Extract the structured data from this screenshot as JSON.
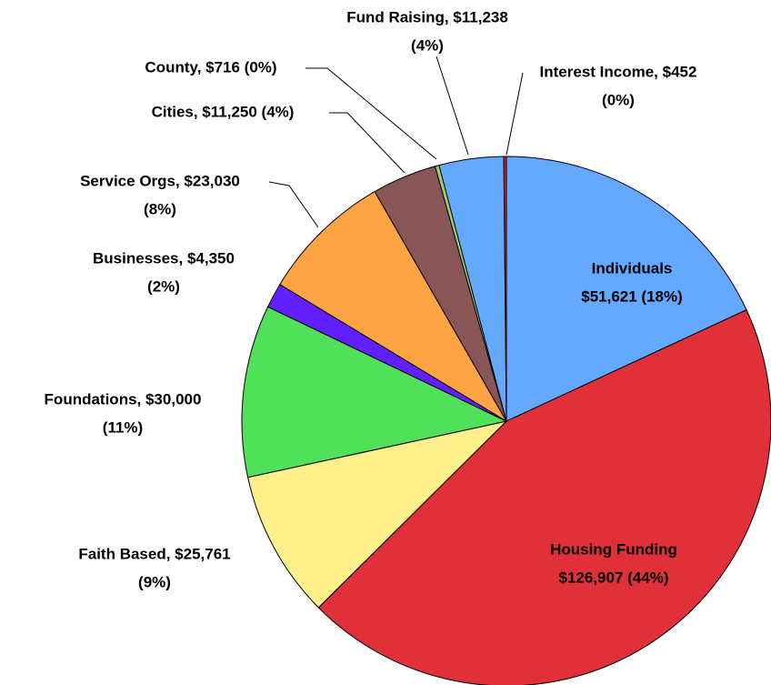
{
  "chart_data": {
    "type": "pie",
    "labels": [
      [
        "Individuals",
        "$51,621 (18%)"
      ],
      [
        "Housing Funding",
        "$126,907 (44%)"
      ],
      [
        "Faith Based, $25,761",
        "(9%)"
      ],
      [
        "Foundations, $30,000",
        "(11%)"
      ],
      [
        "Businesses, $4,350",
        "(2%)"
      ],
      [
        "Service Orgs, $23,030",
        "(8%)"
      ],
      [
        "Cities, $11,250 (4%)"
      ],
      [
        "County, $716 (0%)"
      ],
      [
        "Fund Raising, $11,238",
        "(4%)"
      ],
      [
        "Interest Income, $452",
        "(0%)"
      ]
    ],
    "values": [
      51621,
      126907,
      25761,
      30000,
      4350,
      23030,
      11250,
      716,
      11238,
      452
    ],
    "colors": [
      "#64a8ff",
      "#e0303a",
      "#fff08c",
      "#50e05a",
      "#6020ff",
      "#ffa444",
      "#885656",
      "#9ccc6c",
      "#64a8ff",
      "#e02020"
    ],
    "label_colors": [
      "#000000",
      "#ffffff",
      "#000000",
      "#000000",
      "#000000",
      "#000000",
      "#000000",
      "#000000",
      "#000000",
      "#000000"
    ]
  }
}
